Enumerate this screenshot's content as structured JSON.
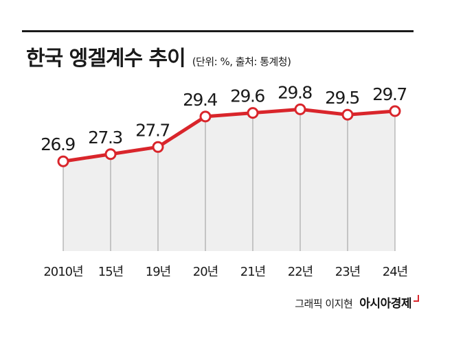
{
  "header": {
    "title": "한국 엥겔계수 추이",
    "subtitle": "(단위: %, 출처: 통계청)"
  },
  "footer": {
    "credit": "그래픽 이지현",
    "brand": "아시아경제"
  },
  "colors": {
    "line": "#d9252b",
    "area_fill": "#efefef",
    "rule": "#1a1a1a",
    "text": "#1a1a1a"
  },
  "chart_data": {
    "type": "area",
    "title": "한국 엥겔계수 추이",
    "subtitle": "(단위: %, 출처: 통계청)",
    "categories": [
      "2010년",
      "15년",
      "19년",
      "20년",
      "21년",
      "22년",
      "23년",
      "24년"
    ],
    "series": [
      {
        "values": [
          26.9,
          27.3,
          27.7,
          29.4,
          29.6,
          29.8,
          29.5,
          29.7
        ]
      }
    ],
    "data_labels": [
      "26.9",
      "27.3",
      "27.7",
      "29.4",
      "29.6",
      "29.8",
      "29.5",
      "29.7"
    ],
    "ylim": [
      21.9,
      31.0
    ],
    "grid": false,
    "legend": "none",
    "xlabel": "",
    "ylabel": ""
  }
}
